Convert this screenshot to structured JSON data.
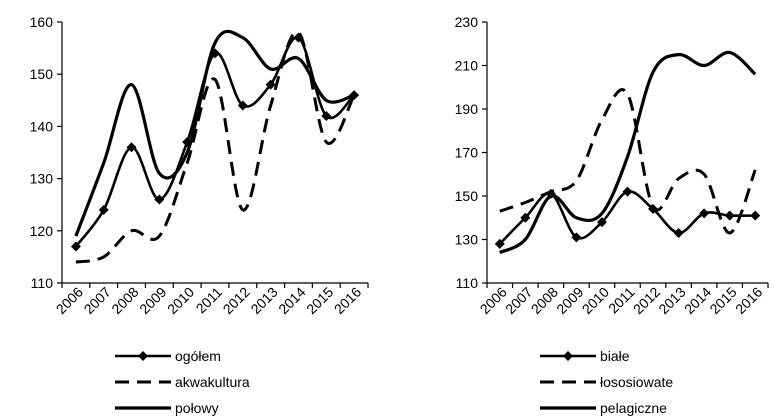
{
  "chart_data": [
    {
      "type": "line",
      "title": "",
      "xlabel": "",
      "ylabel": "",
      "x": [
        "2006",
        "2007",
        "2008",
        "2009",
        "2010",
        "2011",
        "2012",
        "2013",
        "2014",
        "2015",
        "2016"
      ],
      "ylim": [
        110,
        160
      ],
      "yticks": [
        110,
        120,
        130,
        140,
        150,
        160
      ],
      "grid": false,
      "legend": "bottom",
      "series": [
        {
          "name": "ogółem",
          "style": "solid-markers",
          "values": [
            117,
            124,
            136,
            126,
            137,
            154,
            144,
            148,
            157,
            142,
            146
          ]
        },
        {
          "name": "akwakultura",
          "style": "dashed",
          "values": [
            114,
            115,
            120,
            119,
            133,
            149,
            124,
            144,
            158,
            137,
            146
          ]
        },
        {
          "name": "połowy",
          "style": "solid",
          "values": [
            119,
            133,
            148,
            131,
            135,
            156,
            157,
            151,
            153,
            145,
            146
          ]
        }
      ]
    },
    {
      "type": "line",
      "title": "",
      "xlabel": "",
      "ylabel": "",
      "x": [
        "2006",
        "2007",
        "2008",
        "2009",
        "2010",
        "2011",
        "2012",
        "2013",
        "2014",
        "2015",
        "2016"
      ],
      "ylim": [
        110,
        230
      ],
      "yticks": [
        110,
        130,
        150,
        170,
        190,
        210,
        230
      ],
      "grid": false,
      "legend": "bottom",
      "series": [
        {
          "name": "białe",
          "style": "solid-markers",
          "values": [
            128,
            140,
            151,
            131,
            138,
            152,
            144,
            133,
            142,
            141,
            141
          ]
        },
        {
          "name": "łososiowate",
          "style": "dashed",
          "values": [
            143,
            147,
            152,
            157,
            185,
            197,
            145,
            158,
            160,
            133,
            162
          ]
        },
        {
          "name": "pelagiczne",
          "style": "solid",
          "values": [
            124,
            130,
            150,
            140,
            142,
            168,
            207,
            215,
            210,
            216,
            206
          ]
        }
      ]
    }
  ]
}
